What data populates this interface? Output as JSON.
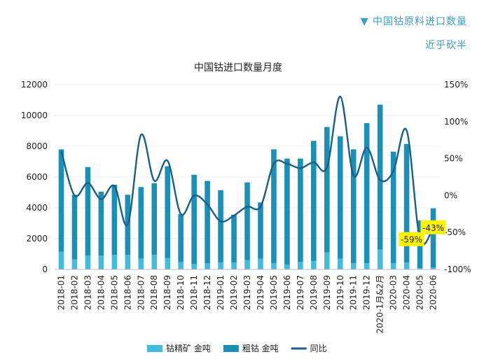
{
  "header": {
    "caption": "▼  中国钴原料进口数量",
    "subcaption": "近乎砍半"
  },
  "chart_data": {
    "type": "bar",
    "title": "中国钴进口数量月度",
    "categories": [
      "2018-01",
      "2018-02",
      "2018-03",
      "2018-04",
      "2018-05",
      "2018-06",
      "2018-07",
      "2018-08",
      "2018-09",
      "2018-10",
      "2018-11",
      "2018-12",
      "2019-01",
      "2019-02",
      "2019-03",
      "2019-04",
      "2019-05",
      "2019-06",
      "2019-07",
      "2019-08",
      "2019-09",
      "2019-10",
      "2019-11",
      "2019-12",
      "2020-1月&2月",
      "2020-03",
      "2020-04",
      "2020-05",
      "2020-06"
    ],
    "series": [
      {
        "name": "钴精矿 金吨",
        "kind": "bar",
        "axis": "left",
        "color": "#41bcdc",
        "values": [
          1150,
          650,
          900,
          900,
          950,
          950,
          700,
          950,
          750,
          500,
          350,
          400,
          450,
          450,
          600,
          700,
          400,
          300,
          500,
          550,
          1100,
          700,
          400,
          400,
          1300,
          400,
          450,
          80,
          120
        ]
      },
      {
        "name": "粗钴 金吨",
        "kind": "bar",
        "axis": "left",
        "color": "#1a8fb8",
        "values": [
          6650,
          4200,
          5750,
          4150,
          4550,
          3900,
          4650,
          4650,
          5950,
          3100,
          5800,
          5350,
          4700,
          3100,
          5050,
          3650,
          7400,
          6900,
          6700,
          7800,
          8150,
          7950,
          7400,
          9100,
          9400,
          7250,
          7700,
          3100,
          3850
        ]
      },
      {
        "name": "同比",
        "kind": "line",
        "axis": "right",
        "color": "#1c5e8a",
        "values": [
          60,
          0,
          17,
          -5,
          13,
          -39,
          82,
          20,
          47,
          -25,
          0,
          -12,
          -35,
          -27,
          -15,
          -15,
          43,
          43,
          37,
          45,
          38,
          134,
          27,
          65,
          21,
          33,
          88,
          -59,
          -43
        ]
      }
    ],
    "left_axis": {
      "min": 0,
      "max": 12000,
      "ticks": [
        0,
        2000,
        4000,
        6000,
        8000,
        10000,
        12000
      ]
    },
    "right_axis": {
      "min": -100,
      "max": 150,
      "ticks": [
        "-100%",
        "-50%",
        "0%",
        "50%",
        "100%",
        "150%"
      ]
    },
    "annotations": [
      {
        "category": "2020-05",
        "label": "-59%"
      },
      {
        "category": "2020-06",
        "label": "-43%"
      }
    ],
    "legend_position": "bottom"
  }
}
